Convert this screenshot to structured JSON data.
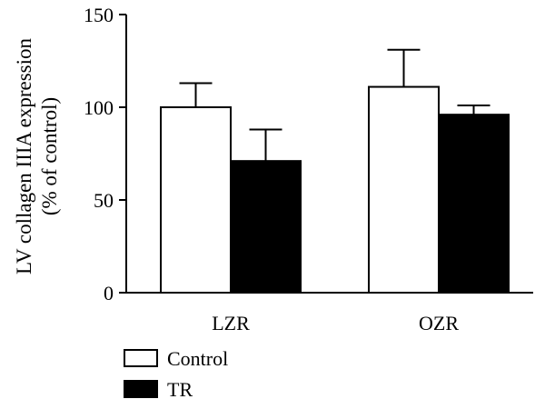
{
  "chart_data": {
    "type": "bar",
    "categories": [
      "LZR",
      "OZR"
    ],
    "series": [
      {
        "name": "Control",
        "values": [
          100,
          111
        ],
        "errors": [
          13,
          20
        ],
        "color": "#ffffff"
      },
      {
        "name": "TR",
        "values": [
          71,
          96
        ],
        "errors": [
          17,
          5
        ],
        "color": "#000000"
      }
    ],
    "ylabel_line1": "LV collagen IIIA expression",
    "ylabel_line2": "(% of control)",
    "ylim": [
      0,
      150
    ],
    "yticks": [
      0,
      50,
      100,
      150
    ],
    "legend_position": "bottom-left",
    "grid": false
  }
}
